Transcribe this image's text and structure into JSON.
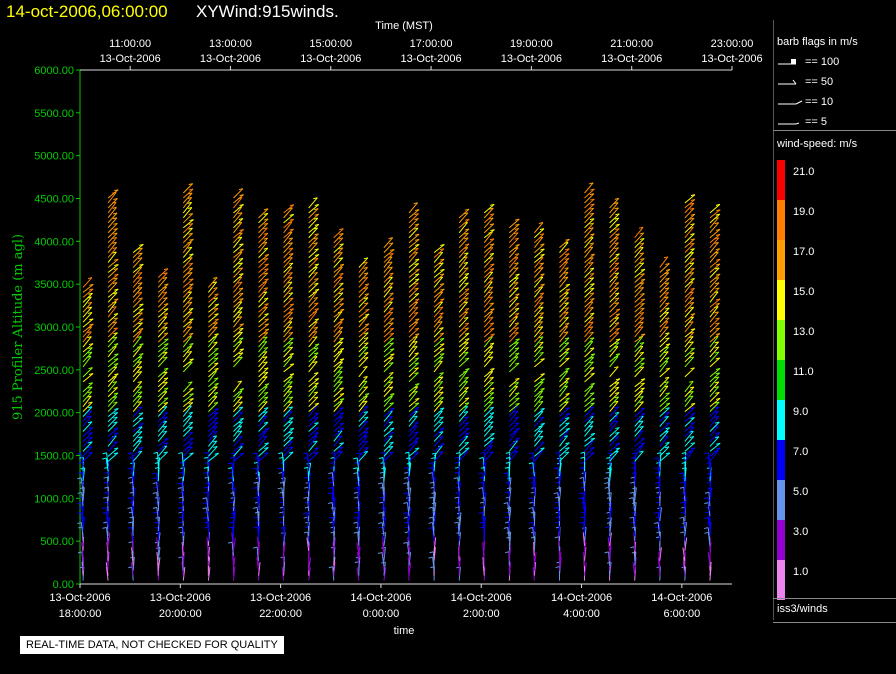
{
  "header": {
    "date_time": "14-oct-2006,06:00:00",
    "product": "XYWind:915winds."
  },
  "top_axis": {
    "label": "Time (MST)",
    "ticks": [
      {
        "time": "11:00:00",
        "date": "13-Oct-2006"
      },
      {
        "time": "13:00:00",
        "date": "13-Oct-2006"
      },
      {
        "time": "15:00:00",
        "date": "13-Oct-2006"
      },
      {
        "time": "17:00:00",
        "date": "13-Oct-2006"
      },
      {
        "time": "19:00:00",
        "date": "13-Oct-2006"
      },
      {
        "time": "21:00:00",
        "date": "13-Oct-2006"
      },
      {
        "time": "23:00:00",
        "date": "13-Oct-2006"
      }
    ]
  },
  "bottom_axis": {
    "label": "time",
    "ticks": [
      {
        "date": "13-Oct-2006",
        "time": "18:00:00"
      },
      {
        "date": "13-Oct-2006",
        "time": "20:00:00"
      },
      {
        "date": "13-Oct-2006",
        "time": "22:00:00"
      },
      {
        "date": "14-Oct-2006",
        "time": "0:00:00"
      },
      {
        "date": "14-Oct-2006",
        "time": "2:00:00"
      },
      {
        "date": "14-Oct-2006",
        "time": "4:00:00"
      },
      {
        "date": "14-Oct-2006",
        "time": "6:00:00"
      }
    ]
  },
  "legend": {
    "barb_title": "barb flags in m/s",
    "barb_items": [
      "== 100",
      "== 50",
      "== 10",
      "== 5"
    ],
    "speed_title": "wind-speed: m/s",
    "colorbar": [
      {
        "label": "21.0",
        "color": "#ff0000"
      },
      {
        "label": "19.0",
        "color": "#ff7f00"
      },
      {
        "label": "17.0",
        "color": "#ff9f00"
      },
      {
        "label": "15.0",
        "color": "#ffff00"
      },
      {
        "label": "13.0",
        "color": "#7fff00"
      },
      {
        "label": "11.0",
        "color": "#00dd00"
      },
      {
        "label": "9.0",
        "color": "#00ffff"
      },
      {
        "label": "7.0",
        "color": "#0000ff"
      },
      {
        "label": "5.0",
        "color": "#6495ed"
      },
      {
        "label": "3.0",
        "color": "#9400d3"
      },
      {
        "label": "1.0",
        "color": "#ee82ee"
      }
    ],
    "source": "iss3/winds"
  },
  "qc_note": "REAL-TIME DATA, NOT CHECKED FOR QUALITY",
  "chart_data": {
    "type": "scatter",
    "subtype": "wind barbs",
    "ylabel": "915 Profiler Altitude (m agl)",
    "ylim": [
      0,
      6000
    ],
    "yticks": [
      "0.00",
      "500.00",
      "1000.00",
      "1500.00",
      "2000.00",
      "2500.00",
      "3000.00",
      "3500.00",
      "4000.00",
      "4500.00",
      "5000.00",
      "5500.00",
      "6000.00"
    ],
    "xlim_hours": [
      17.0,
      30.0
    ],
    "profile_times_hours": [
      17.0,
      17.5,
      18.0,
      18.5,
      19.0,
      19.5,
      20.0,
      20.5,
      21.0,
      21.5,
      22.0,
      22.5,
      23.0,
      23.5,
      24.0,
      24.5,
      25.0,
      25.5,
      26.0,
      26.5,
      27.0,
      27.5,
      28.0,
      28.5,
      29.0,
      29.5
    ],
    "speed_bands_by_height": [
      {
        "from_m": 0,
        "to_m": 500,
        "speed_ms": 3.0
      },
      {
        "from_m": 500,
        "to_m": 1200,
        "speed_ms": 6.0
      },
      {
        "from_m": 1200,
        "to_m": 2000,
        "speed_ms": 8.0
      },
      {
        "from_m": 2000,
        "to_m": 2800,
        "speed_ms": 14.0
      },
      {
        "from_m": 2800,
        "to_m": 4800,
        "speed_ms": 17.0
      }
    ],
    "grid": false
  }
}
